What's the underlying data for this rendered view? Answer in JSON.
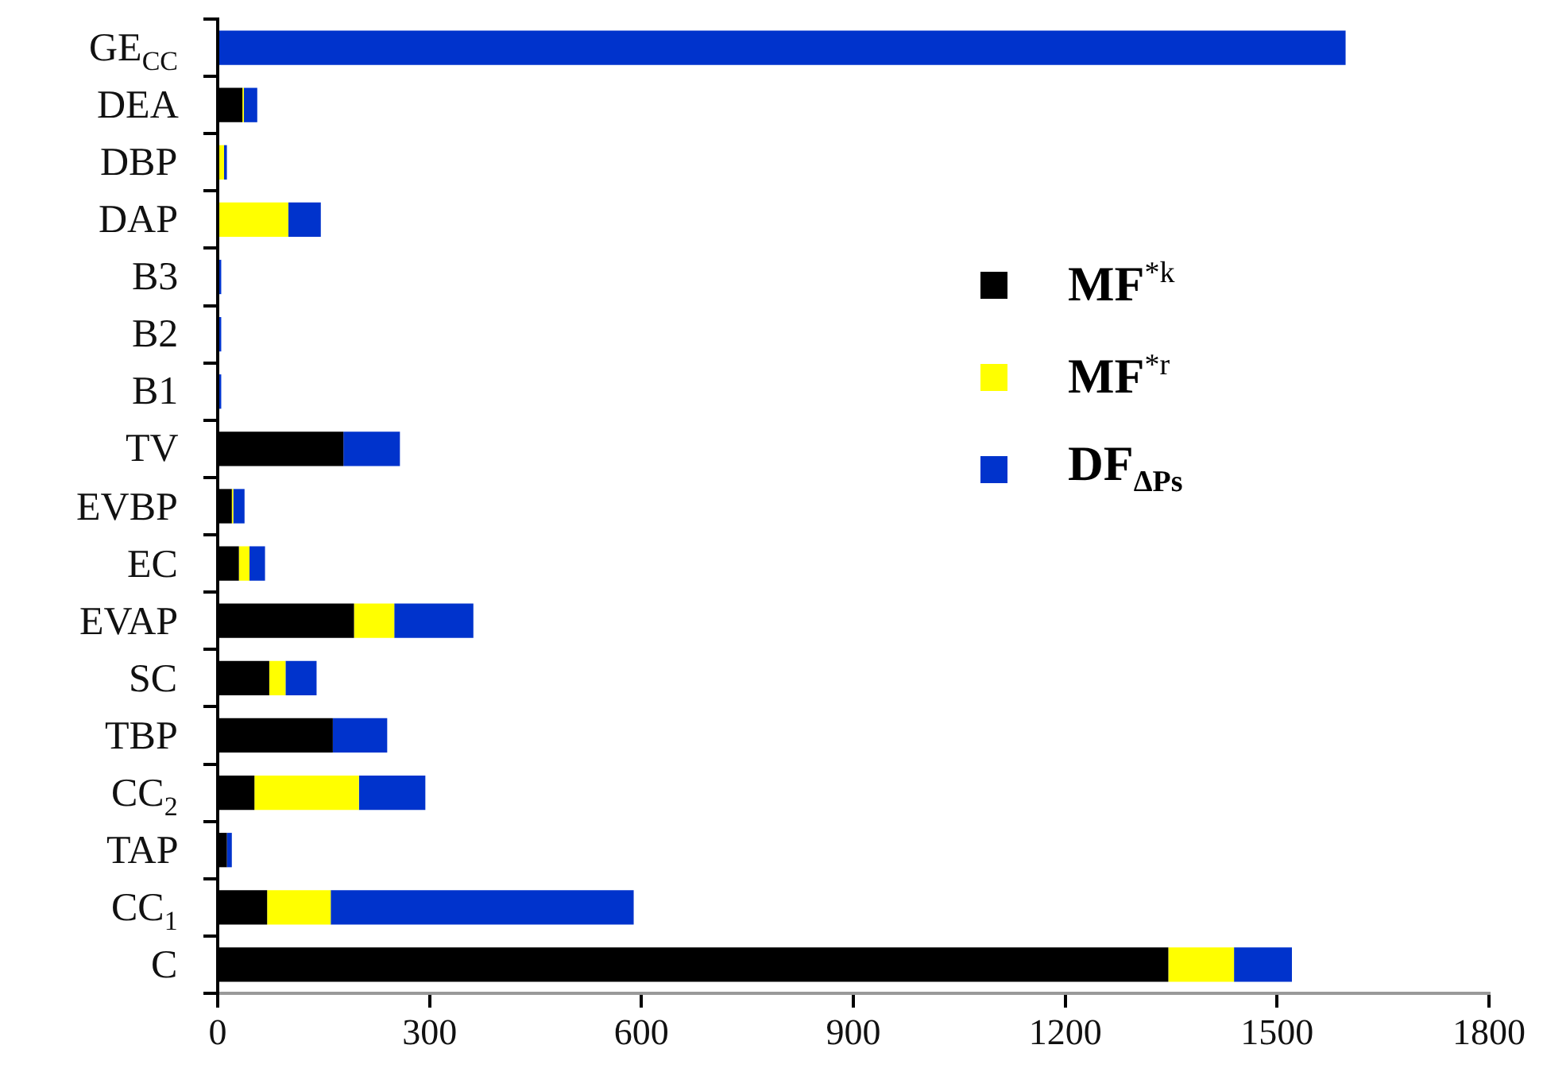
{
  "chart_data": {
    "type": "bar",
    "orientation": "horizontal",
    "stacked": true,
    "categories": [
      "GE$_{CC}$",
      "DEA",
      "DBP",
      "DAP",
      "B3",
      "B2",
      "B1",
      "TV",
      "EVBP",
      "EC",
      "EVAP",
      "SC",
      "TBP",
      "CC$_{2}$",
      "TAP",
      "CC$_{1}$",
      "C"
    ],
    "series": [
      {
        "name": "MF$^{*k}$",
        "color": "#000000",
        "values": [
          0,
          35,
          0,
          0,
          0,
          0,
          0,
          178,
          20,
          30,
          193,
          73,
          163,
          52,
          13,
          70,
          1346
        ]
      },
      {
        "name": "MF$^{*r}$",
        "color": "#ffff00",
        "values": [
          0,
          2,
          9,
          100,
          0,
          0,
          0,
          0,
          2,
          15,
          57,
          23,
          0,
          148,
          0,
          90,
          93
        ]
      },
      {
        "name": "DF$_{ΔPs}$",
        "color": "#0033cc",
        "values": [
          1597,
          19,
          4,
          46,
          5,
          5,
          5,
          80,
          16,
          22,
          112,
          44,
          77,
          94,
          7,
          429,
          82
        ]
      }
    ],
    "xlim": [
      0,
      1800
    ],
    "xticks": [
      0,
      300,
      600,
      900,
      1200,
      1500,
      1800
    ],
    "legend": "right",
    "grid": false
  }
}
